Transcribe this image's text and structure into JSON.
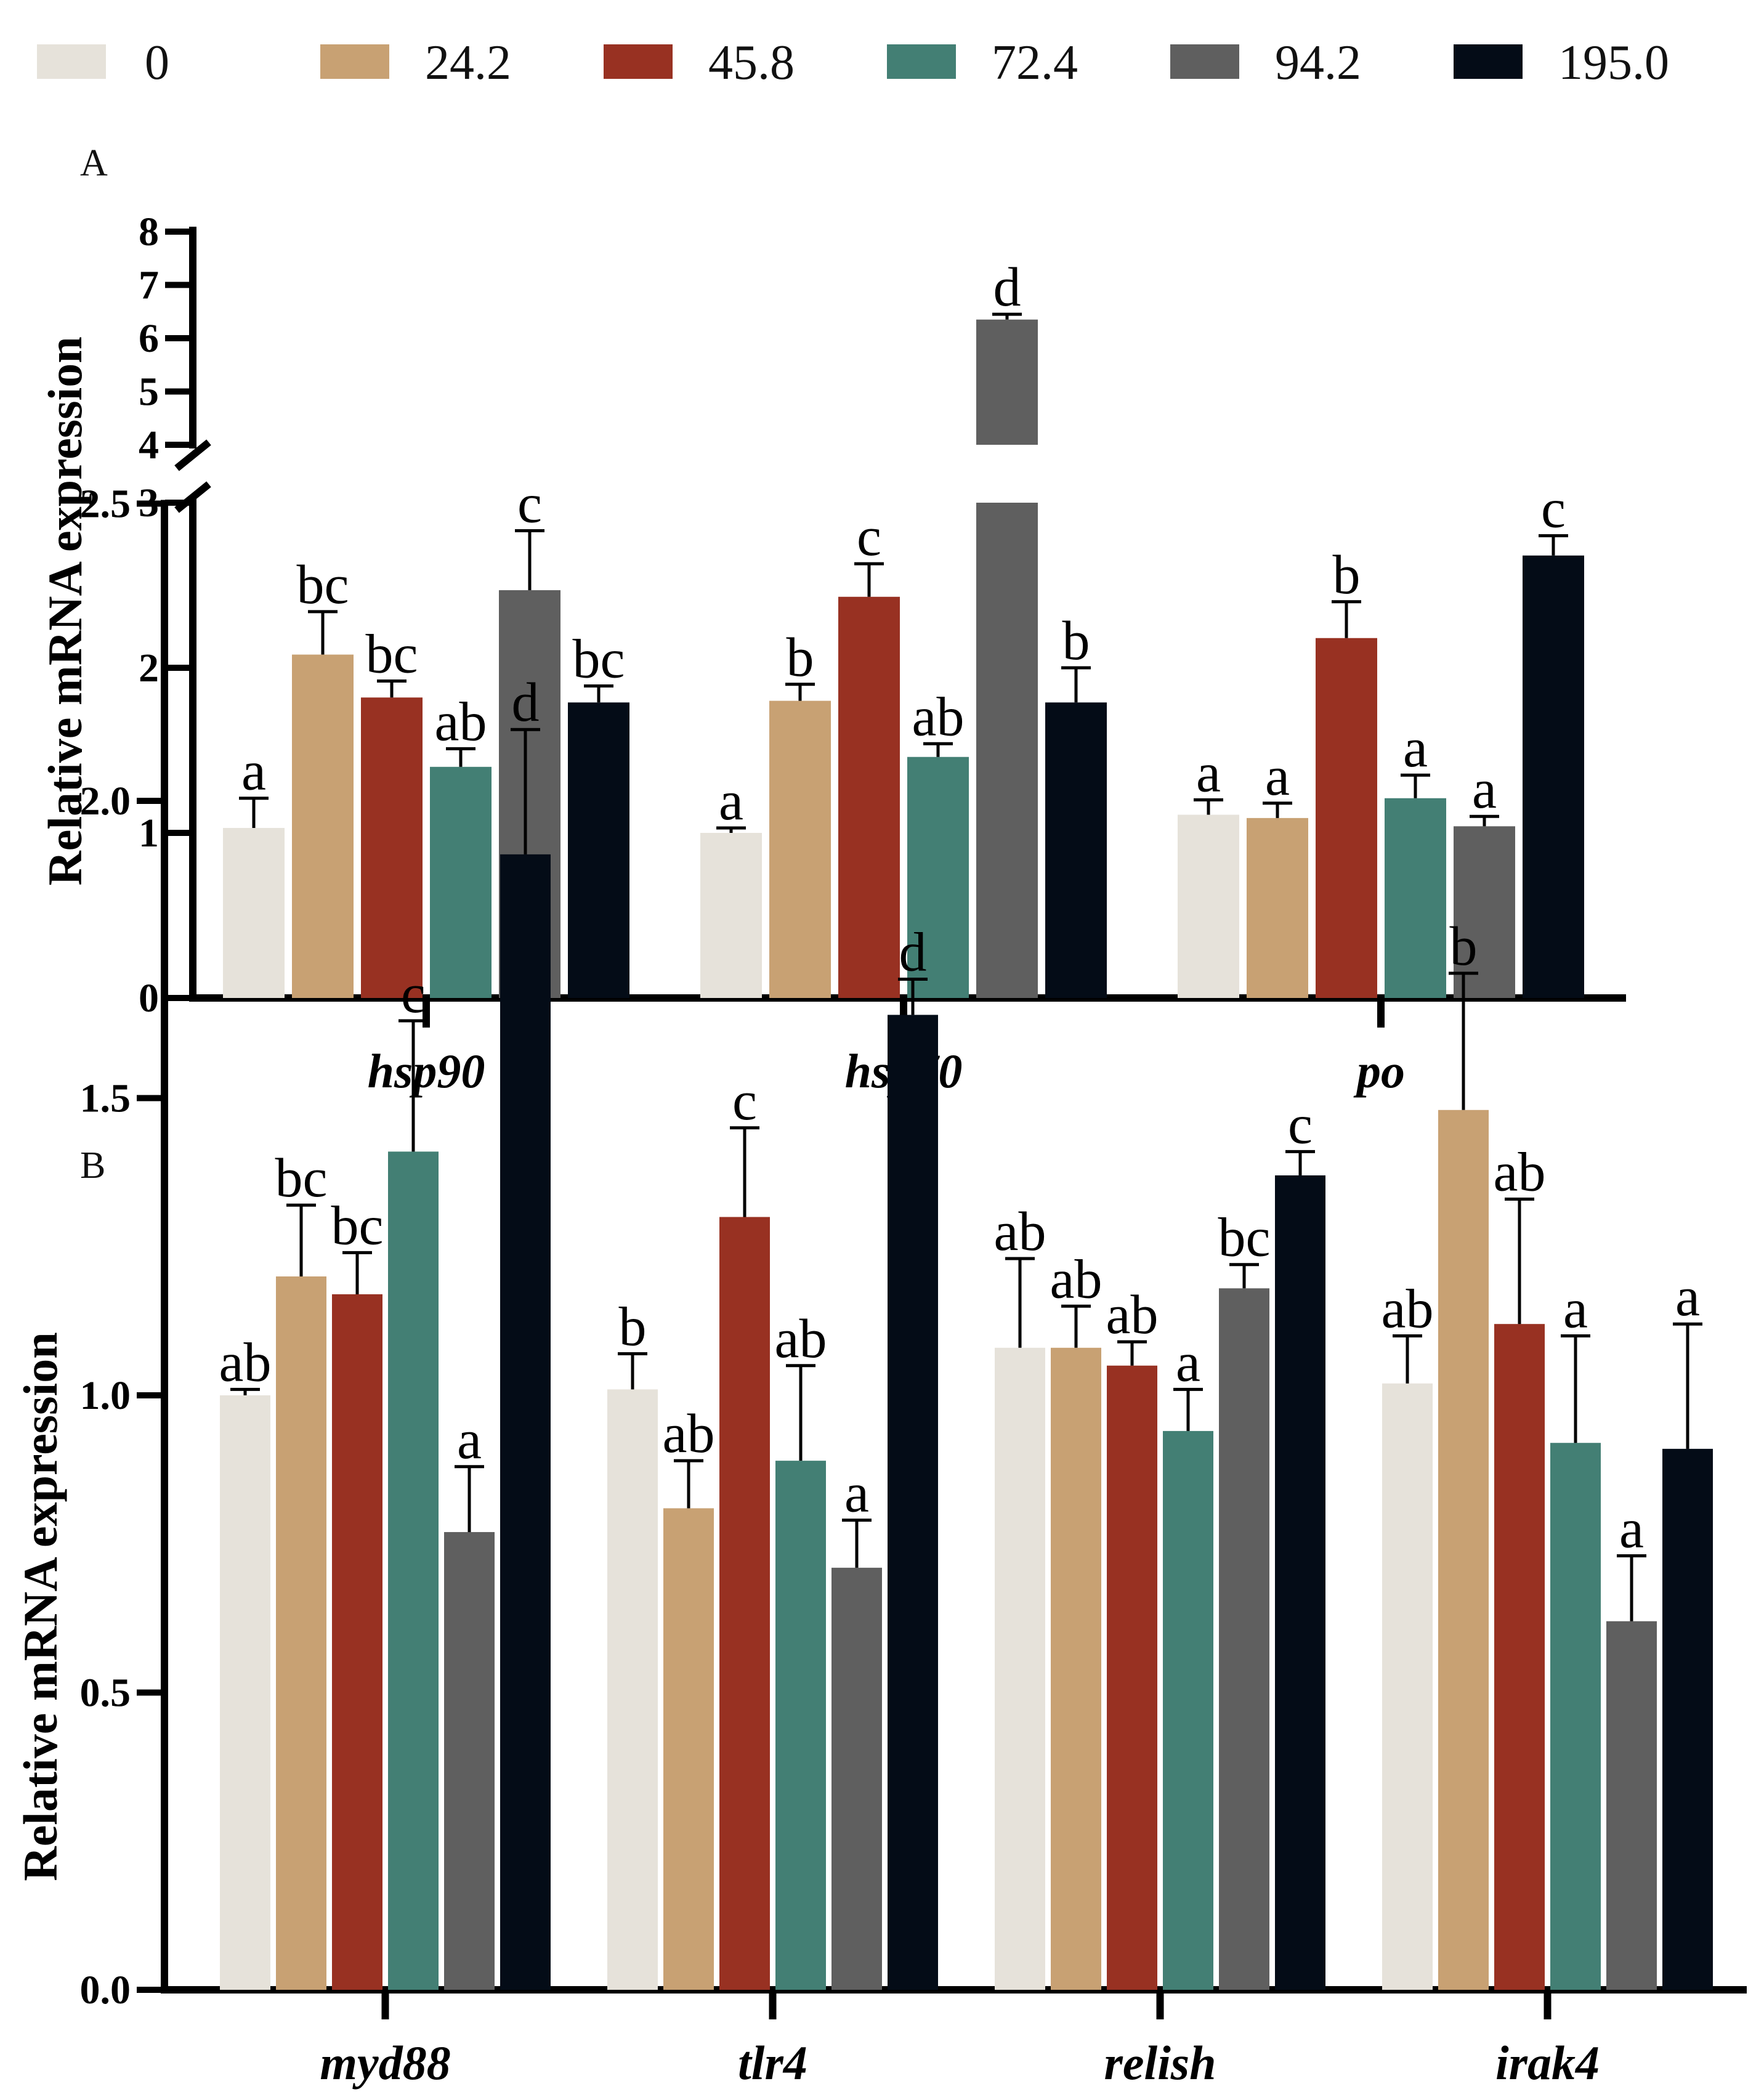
{
  "legend": {
    "items": [
      {
        "label": "0",
        "color": "#E6E2DA"
      },
      {
        "label": "24.2",
        "color": "#C8A173"
      },
      {
        "label": "45.8",
        "color": "#983122"
      },
      {
        "label": "72.4",
        "color": "#437F74"
      },
      {
        "label": "94.2",
        "color": "#5F5F5F"
      },
      {
        "label": "195.0",
        "color": "#040C17"
      }
    ]
  },
  "chart_data": [
    {
      "type": "bar",
      "panel_label": "A",
      "ylabel": "Relative mRNA expression",
      "categories": [
        "hsp90",
        "hsp70",
        "po"
      ],
      "y_axis_break": {
        "lower_ticks": [
          "0",
          "1",
          "2",
          "3"
        ],
        "upper_ticks": [
          "4",
          "5",
          "6",
          "7",
          "8"
        ]
      },
      "ylim": [
        0,
        8
      ],
      "series": [
        {
          "name": "0",
          "values": [
            1.03,
            1.0,
            1.11
          ],
          "errors": [
            0.18,
            0.03,
            0.09
          ],
          "labels": [
            "a",
            "a",
            "a"
          ]
        },
        {
          "name": "24.2",
          "values": [
            2.08,
            1.8,
            1.09
          ],
          "errors": [
            0.26,
            0.1,
            0.09
          ],
          "labels": [
            "bc",
            "b",
            "a"
          ]
        },
        {
          "name": "45.8",
          "values": [
            1.82,
            2.43,
            2.18
          ],
          "errors": [
            0.1,
            0.2,
            0.22
          ],
          "labels": [
            "bc",
            "c",
            "b"
          ]
        },
        {
          "name": "72.4",
          "values": [
            1.4,
            1.46,
            1.21
          ],
          "errors": [
            0.11,
            0.08,
            0.14
          ],
          "labels": [
            "ab",
            "ab",
            "a"
          ]
        },
        {
          "name": "94.2",
          "values": [
            2.47,
            6.35,
            1.04
          ],
          "errors": [
            0.36,
            0.1,
            0.06
          ],
          "labels": [
            "c",
            "d",
            "a"
          ]
        },
        {
          "name": "195.0",
          "values": [
            1.79,
            1.79,
            2.68
          ],
          "errors": [
            0.1,
            0.21,
            0.12
          ],
          "labels": [
            "bc",
            "b",
            "c"
          ]
        }
      ]
    },
    {
      "type": "bar",
      "panel_label": "B",
      "ylabel": "Relative mRNA expression",
      "categories": [
        "myd88",
        "tlr4",
        "relish",
        "irak4"
      ],
      "yticks": [
        "0.0",
        "0.5",
        "1.0",
        "1.5",
        "2.0",
        "2.5"
      ],
      "ylim": [
        0,
        2.5
      ],
      "series": [
        {
          "name": "0",
          "values": [
            1.0,
            1.01,
            1.08,
            1.02
          ],
          "errors": [
            0.01,
            0.06,
            0.15,
            0.08
          ],
          "labels": [
            "ab",
            "b",
            "ab",
            "ab"
          ]
        },
        {
          "name": "24.2",
          "values": [
            1.2,
            0.81,
            1.08,
            1.48
          ],
          "errors": [
            0.12,
            0.08,
            0.07,
            0.23
          ],
          "labels": [
            "bc",
            "ab",
            "ab",
            "b"
          ]
        },
        {
          "name": "45.8",
          "values": [
            1.17,
            1.3,
            1.05,
            1.12
          ],
          "errors": [
            0.07,
            0.15,
            0.04,
            0.21
          ],
          "labels": [
            "bc",
            "c",
            "ab",
            "ab"
          ]
        },
        {
          "name": "72.4",
          "values": [
            1.41,
            0.89,
            0.94,
            0.92
          ],
          "errors": [
            0.22,
            0.16,
            0.07,
            0.18
          ],
          "labels": [
            "c",
            "ab",
            "a",
            "a"
          ]
        },
        {
          "name": "94.2",
          "values": [
            0.77,
            0.71,
            1.18,
            0.62
          ],
          "errors": [
            0.11,
            0.08,
            0.04,
            0.11
          ],
          "labels": [
            "a",
            "a",
            "bc",
            "a"
          ]
        },
        {
          "name": "195.0",
          "values": [
            1.91,
            1.64,
            1.37,
            0.91
          ],
          "errors": [
            0.21,
            0.06,
            0.04,
            0.21
          ],
          "labels": [
            "d",
            "d",
            "c",
            "a"
          ]
        }
      ]
    }
  ]
}
